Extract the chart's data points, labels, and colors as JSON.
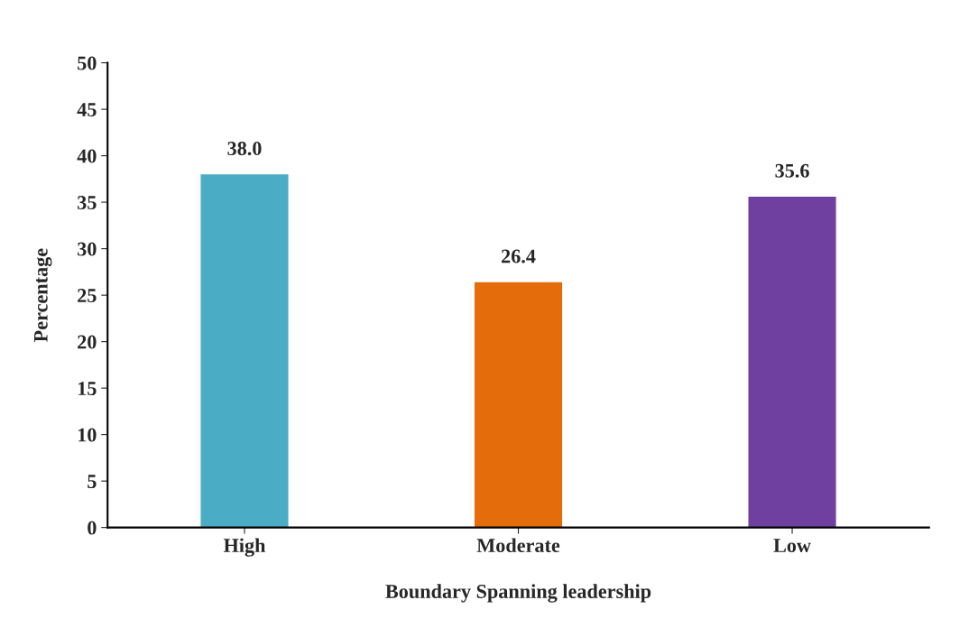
{
  "chart_data": {
    "type": "bar",
    "xlabel": "Boundary Spanning leadership",
    "ylabel": "Percentage",
    "categories": [
      "High",
      "Moderate",
      "Low"
    ],
    "values": [
      38.0,
      26.4,
      35.6
    ],
    "colors": [
      "#4bacc6",
      "#e46c0a",
      "#7040a0"
    ],
    "value_labels": [
      "38.0",
      "26.4",
      "35.6"
    ],
    "ylim": [
      0,
      50
    ],
    "yticks": [
      0,
      5,
      10,
      15,
      20,
      25,
      30,
      35,
      40,
      45,
      50
    ],
    "grid": false
  }
}
